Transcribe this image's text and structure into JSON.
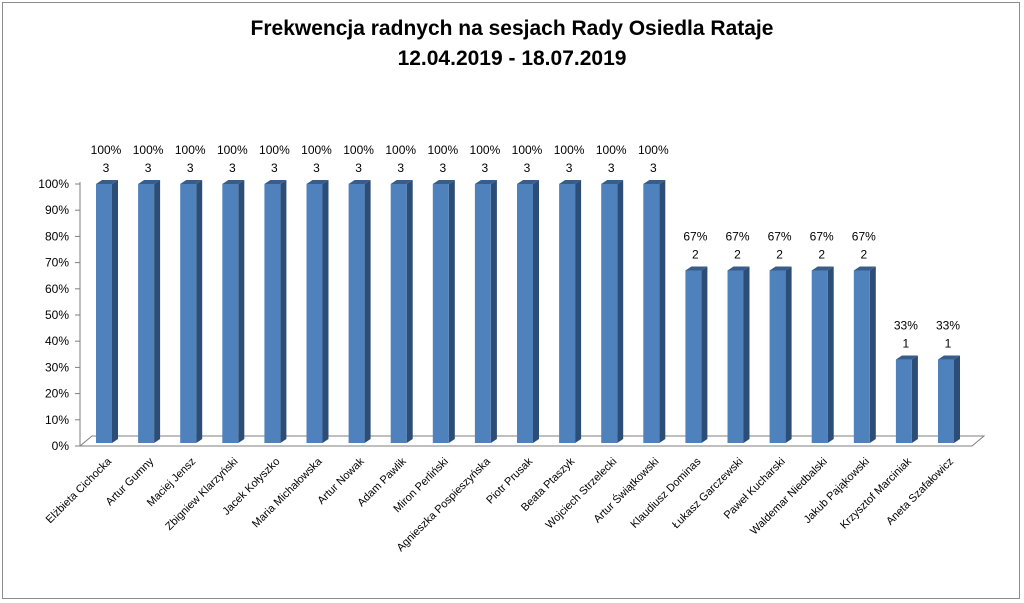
{
  "chart_data": {
    "type": "bar",
    "title": "Frekwencja radnych na sesjach Rady Osiedla Rataje",
    "subtitle": "12.04.2019 - 18.07.2019",
    "categories": [
      "Elżbieta Cichocka",
      "Artur Gumny",
      "Maciej Jensz",
      "Zbigniew Klarzyński",
      "Jacek Kołyszko",
      "Maria Michałowska",
      "Artur Nowak",
      "Adam Pawlik",
      "Miron Perliński",
      "Agnieszka Pospieszyńska",
      "Piotr Prusak",
      "Beata Ptaszyk",
      "Wojciech Strzelecki",
      "Artur Świątkowski",
      "Klaudiusz Dominas",
      "Łukasz Garczewski",
      "Paweł Kucharski",
      "Waldemar Niedbalski",
      "Jakub Pająkowski",
      "Krzysztof Marciniak",
      "Aneta Szafałowicz"
    ],
    "values": [
      100,
      100,
      100,
      100,
      100,
      100,
      100,
      100,
      100,
      100,
      100,
      100,
      100,
      100,
      67,
      67,
      67,
      67,
      67,
      33,
      33
    ],
    "value_labels": [
      "100%",
      "100%",
      "100%",
      "100%",
      "100%",
      "100%",
      "100%",
      "100%",
      "100%",
      "100%",
      "100%",
      "100%",
      "100%",
      "100%",
      "67%",
      "67%",
      "67%",
      "67%",
      "67%",
      "33%",
      "33%"
    ],
    "counts": [
      "3",
      "3",
      "3",
      "3",
      "3",
      "3",
      "3",
      "3",
      "3",
      "3",
      "3",
      "3",
      "3",
      "3",
      "2",
      "2",
      "2",
      "2",
      "2",
      "1",
      "1"
    ],
    "yticks": [
      "0%",
      "10%",
      "20%",
      "30%",
      "40%",
      "50%",
      "60%",
      "70%",
      "80%",
      "90%",
      "100%"
    ],
    "ylim": [
      0,
      100
    ],
    "xlabel": "",
    "ylabel": "",
    "grid": false,
    "legend": "none",
    "colors": {
      "bar_front": "#4f81bd",
      "bar_side": "#2c4d75",
      "bar_top": "#385d8a",
      "axis": "#7f7f7f"
    }
  }
}
